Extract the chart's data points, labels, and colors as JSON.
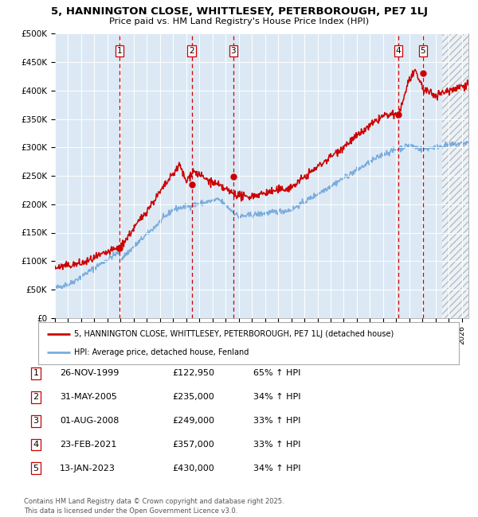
{
  "title": "5, HANNINGTON CLOSE, WHITTLESEY, PETERBOROUGH, PE7 1LJ",
  "subtitle": "Price paid vs. HM Land Registry's House Price Index (HPI)",
  "ylim": [
    0,
    500000
  ],
  "yticks": [
    0,
    50000,
    100000,
    150000,
    200000,
    250000,
    300000,
    350000,
    400000,
    450000,
    500000
  ],
  "ytick_labels": [
    "£0",
    "£50K",
    "£100K",
    "£150K",
    "£200K",
    "£250K",
    "£300K",
    "£350K",
    "£400K",
    "£450K",
    "£500K"
  ],
  "xlim_start": 1995.0,
  "xlim_end": 2026.5,
  "background_color": "#dce9f5",
  "red_line_color": "#cc0000",
  "blue_line_color": "#7aacdc",
  "grid_color": "#ffffff",
  "vline_color": "#cc0000",
  "hatch_start": 2024.5,
  "sale_points": [
    {
      "year": 1999.9,
      "price": 122950,
      "label": "1"
    },
    {
      "year": 2005.42,
      "price": 235000,
      "label": "2"
    },
    {
      "year": 2008.58,
      "price": 249000,
      "label": "3"
    },
    {
      "year": 2021.15,
      "price": 357000,
      "label": "4"
    },
    {
      "year": 2023.04,
      "price": 430000,
      "label": "5"
    }
  ],
  "table_rows": [
    {
      "num": "1",
      "date": "26-NOV-1999",
      "price": "£122,950",
      "hpi": "65% ↑ HPI"
    },
    {
      "num": "2",
      "date": "31-MAY-2005",
      "price": "£235,000",
      "hpi": "34% ↑ HPI"
    },
    {
      "num": "3",
      "date": "01-AUG-2008",
      "price": "£249,000",
      "hpi": "33% ↑ HPI"
    },
    {
      "num": "4",
      "date": "23-FEB-2021",
      "price": "£357,000",
      "hpi": "33% ↑ HPI"
    },
    {
      "num": "5",
      "date": "13-JAN-2023",
      "price": "£430,000",
      "hpi": "34% ↑ HPI"
    }
  ],
  "legend_red": "5, HANNINGTON CLOSE, WHITTLESEY, PETERBOROUGH, PE7 1LJ (detached house)",
  "legend_blue": "HPI: Average price, detached house, Fenland",
  "footnote": "Contains HM Land Registry data © Crown copyright and database right 2025.\nThis data is licensed under the Open Government Licence v3.0."
}
